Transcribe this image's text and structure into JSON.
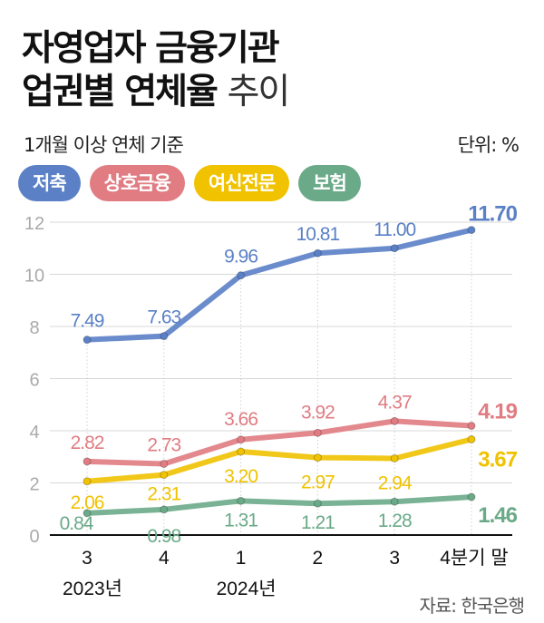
{
  "chart_data": {
    "type": "line",
    "title_line1": "자영업자 금융기관",
    "title_line2_bold": "업권별 연체율",
    "title_line2_light": "추이",
    "subtitle": "1개월 이상 연체 기준",
    "unit": "단위: %",
    "source": "자료: 한국은행",
    "categories": [
      "3",
      "4",
      "1",
      "2",
      "3",
      "4분기 말"
    ],
    "year_labels": [
      {
        "index": 0,
        "label": "2023년"
      },
      {
        "index": 2,
        "label": "2024년"
      }
    ],
    "ylim": [
      0,
      12
    ],
    "yticks": [
      0,
      2,
      4,
      6,
      8,
      10,
      12
    ],
    "grid": true,
    "legend_position": "top-left",
    "series": [
      {
        "name": "저축",
        "color": "#5b80c6",
        "values": [
          7.49,
          7.63,
          9.96,
          10.81,
          11.0,
          11.7
        ],
        "labels": [
          "7.49",
          "7.63",
          "9.96",
          "10.81",
          "11.00",
          "11.70"
        ]
      },
      {
        "name": "상호금융",
        "color": "#e07c82",
        "values": [
          2.82,
          2.73,
          3.66,
          3.92,
          4.37,
          4.19
        ],
        "labels": [
          "2.82",
          "2.73",
          "3.66",
          "3.92",
          "4.37",
          "4.19"
        ]
      },
      {
        "name": "여신전문",
        "color": "#f0c200",
        "values": [
          2.06,
          2.31,
          3.2,
          2.97,
          2.94,
          3.67
        ],
        "labels": [
          "2.06",
          "2.31",
          "3.20",
          "2.97",
          "2.94",
          "3.67"
        ]
      },
      {
        "name": "보험",
        "color": "#6aaa88",
        "values": [
          0.84,
          0.98,
          1.31,
          1.21,
          1.28,
          1.46
        ],
        "labels": [
          "0.84",
          "0.98",
          "1.31",
          "1.21",
          "1.28",
          "1.46"
        ]
      }
    ]
  }
}
